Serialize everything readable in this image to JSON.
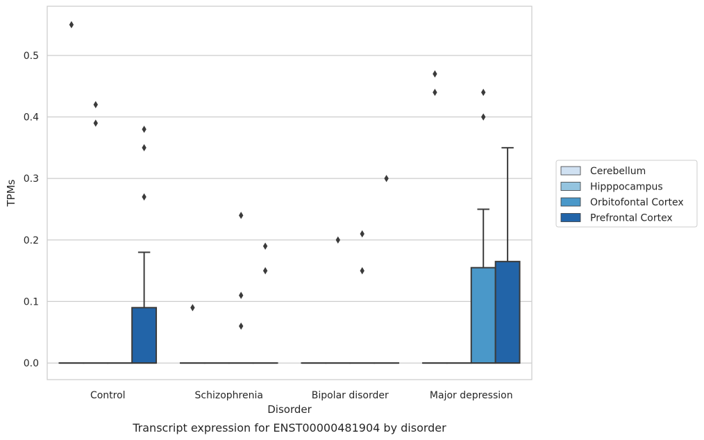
{
  "chart_data": {
    "type": "box",
    "title": "",
    "caption": "Transcript expression for ENST00000481904 by disorder",
    "xlabel": "Disorder",
    "ylabel": "TPMs",
    "ylim": [
      -0.027,
      0.58
    ],
    "yticks": [
      0.0,
      0.1,
      0.2,
      0.3,
      0.4,
      0.5
    ],
    "ytick_labels": [
      "0.0",
      "0.1",
      "0.2",
      "0.3",
      "0.4",
      "0.5"
    ],
    "grid": "horizontal",
    "legend_position": "right",
    "categories": [
      "Control",
      "Schizophrenia",
      "Bipolar disorder",
      "Major depression"
    ],
    "series": [
      {
        "name": "Cerebellum",
        "color": "#d0e1f2",
        "boxes": [
          {
            "q1": 0,
            "median": 0,
            "q3": 0,
            "whisker_low": 0,
            "whisker_high": 0,
            "outliers": [
              0.55
            ]
          },
          {
            "q1": 0,
            "median": 0,
            "q3": 0,
            "whisker_low": 0,
            "whisker_high": 0,
            "outliers": [
              0.09
            ]
          },
          {
            "q1": 0,
            "median": 0,
            "q3": 0,
            "whisker_low": 0,
            "whisker_high": 0,
            "outliers": []
          },
          {
            "q1": 0,
            "median": 0,
            "q3": 0,
            "whisker_low": 0,
            "whisker_high": 0,
            "outliers": [
              0.47,
              0.44
            ]
          }
        ]
      },
      {
        "name": "Hipppocampus",
        "color": "#94c4df",
        "boxes": [
          {
            "q1": 0,
            "median": 0,
            "q3": 0,
            "whisker_low": 0,
            "whisker_high": 0,
            "outliers": [
              0.42,
              0.39
            ]
          },
          {
            "q1": 0,
            "median": 0,
            "q3": 0,
            "whisker_low": 0,
            "whisker_high": 0,
            "outliers": []
          },
          {
            "q1": 0,
            "median": 0,
            "q3": 0,
            "whisker_low": 0,
            "whisker_high": 0,
            "outliers": [
              0.2
            ]
          },
          {
            "q1": 0,
            "median": 0,
            "q3": 0,
            "whisker_low": 0,
            "whisker_high": 0,
            "outliers": []
          }
        ]
      },
      {
        "name": "Orbitofontal Cortex",
        "color": "#4a98c9",
        "boxes": [
          {
            "q1": 0,
            "median": 0,
            "q3": 0,
            "whisker_low": 0,
            "whisker_high": 0,
            "outliers": []
          },
          {
            "q1": 0,
            "median": 0,
            "q3": 0,
            "whisker_low": 0,
            "whisker_high": 0,
            "outliers": [
              0.24,
              0.11,
              0.06
            ]
          },
          {
            "q1": 0,
            "median": 0,
            "q3": 0,
            "whisker_low": 0,
            "whisker_high": 0,
            "outliers": [
              0.21,
              0.15
            ]
          },
          {
            "q1": 0,
            "median": 0,
            "q3": 0.155,
            "whisker_low": 0,
            "whisker_high": 0.25,
            "outliers": [
              0.44,
              0.4
            ]
          }
        ]
      },
      {
        "name": "Prefrontal Cortex",
        "color": "#2264a8",
        "boxes": [
          {
            "q1": 0,
            "median": 0,
            "q3": 0.09,
            "whisker_low": 0,
            "whisker_high": 0.18,
            "outliers": [
              0.38,
              0.35,
              0.27
            ]
          },
          {
            "q1": 0,
            "median": 0,
            "q3": 0,
            "whisker_low": 0,
            "whisker_high": 0,
            "outliers": [
              0.19,
              0.15
            ]
          },
          {
            "q1": 0,
            "median": 0,
            "q3": 0,
            "whisker_low": 0,
            "whisker_high": 0,
            "outliers": [
              0.3
            ]
          },
          {
            "q1": 0,
            "median": 0,
            "q3": 0.165,
            "whisker_low": 0,
            "whisker_high": 0.35,
            "outliers": []
          }
        ]
      }
    ]
  }
}
